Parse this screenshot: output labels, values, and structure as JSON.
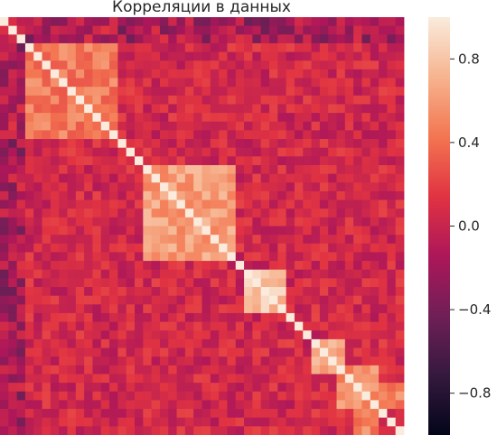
{
  "chart_data": {
    "type": "heatmap",
    "title": "Корреляции в данных",
    "xlabel": "",
    "ylabel": "",
    "rows": 48,
    "cols": 48,
    "diagonal_value": 1.0,
    "colormap": "rocket",
    "colormap_stops": [
      "#03051a",
      "#35193e",
      "#701f57",
      "#ad1759",
      "#e13342",
      "#f37651",
      "#f6b48f",
      "#faebdd"
    ],
    "colorbar": {
      "vmin": -1.0,
      "vmax": 1.0,
      "ticks": [
        -0.8,
        -0.4,
        0.0,
        0.4,
        0.8
      ],
      "tick_labels": [
        "−0.8",
        "−0.4",
        "0.0",
        "0.4",
        "0.8"
      ]
    },
    "blocks": [
      {
        "rows": [
          3,
          13
        ],
        "cols": [
          3,
          13
        ],
        "value": 0.45
      },
      {
        "rows": [
          17,
          27
        ],
        "cols": [
          17,
          27
        ],
        "value": 0.62
      },
      {
        "rows": [
          29,
          33
        ],
        "cols": [
          29,
          33
        ],
        "value": 0.78
      },
      {
        "rows": [
          37,
          40
        ],
        "cols": [
          37,
          40
        ],
        "value": 0.7
      },
      {
        "rows": [
          40,
          44
        ],
        "cols": [
          40,
          44
        ],
        "value": 0.55
      },
      {
        "rows": [
          42,
          44
        ],
        "cols": [
          45,
          47
        ],
        "value": 0.5
      }
    ],
    "baseline_value": 0.05,
    "edge_strip_value": -0.45
  }
}
